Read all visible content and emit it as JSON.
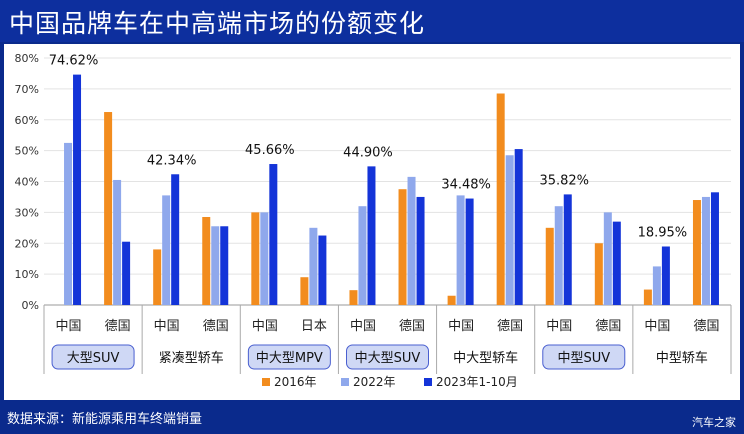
{
  "header": {
    "title": "中国品牌车在中高端市场的份额变化"
  },
  "footer": {
    "source": "数据来源：新能源乘用车终端销量",
    "logo": "汽车之家"
  },
  "colors": {
    "series_2016": "#f28c1e",
    "series_2022": "#8fa8ec",
    "series_2023": "#1434d8",
    "pill_fill": "#cfd8f5",
    "pill_stroke": "#4a5fd0"
  },
  "chart_data": {
    "type": "bar",
    "title": "中国品牌车在中高端市场的份额变化",
    "ylim": [
      0,
      80
    ],
    "yticks": [
      "0%",
      "10%",
      "20%",
      "30%",
      "40%",
      "50%",
      "60%",
      "70%",
      "80%"
    ],
    "legend_position": "bottom",
    "segments": [
      {
        "label": "大型SUV",
        "pill": true,
        "categories": [
          "中国",
          "德国"
        ],
        "annotation": "74.62%"
      },
      {
        "label": "紧凑型轿车",
        "pill": false,
        "categories": [
          "中国",
          "德国"
        ],
        "annotation": "42.34%"
      },
      {
        "label": "中大型MPV",
        "pill": true,
        "categories": [
          "中国",
          "日本"
        ],
        "annotation": "45.66%"
      },
      {
        "label": "中大型SUV",
        "pill": true,
        "categories": [
          "中国",
          "德国"
        ],
        "annotation": "44.90%"
      },
      {
        "label": "中大型轿车",
        "pill": false,
        "categories": [
          "中国",
          "德国"
        ],
        "annotation": "34.48%"
      },
      {
        "label": "中型SUV",
        "pill": true,
        "categories": [
          "中国",
          "德国"
        ],
        "annotation": "35.82%"
      },
      {
        "label": "中型轿车",
        "pill": false,
        "categories": [
          "中国",
          "德国"
        ],
        "annotation": "18.95%"
      }
    ],
    "series": [
      {
        "name": "2016年",
        "values": [
          0,
          62.5,
          18,
          28.5,
          30,
          9,
          4.8,
          37.5,
          3,
          68.5,
          25,
          20,
          5,
          34
        ]
      },
      {
        "name": "2022年",
        "values": [
          52.5,
          40.5,
          35.5,
          25.5,
          30,
          25,
          32,
          41.5,
          35.5,
          48.5,
          32,
          30,
          12.5,
          35
        ]
      },
      {
        "name": "2023年1-10月",
        "values": [
          74.62,
          20.5,
          42.34,
          25.5,
          45.66,
          22.5,
          44.9,
          35,
          34.48,
          50.5,
          35.82,
          27,
          18.95,
          36.5
        ]
      }
    ]
  }
}
